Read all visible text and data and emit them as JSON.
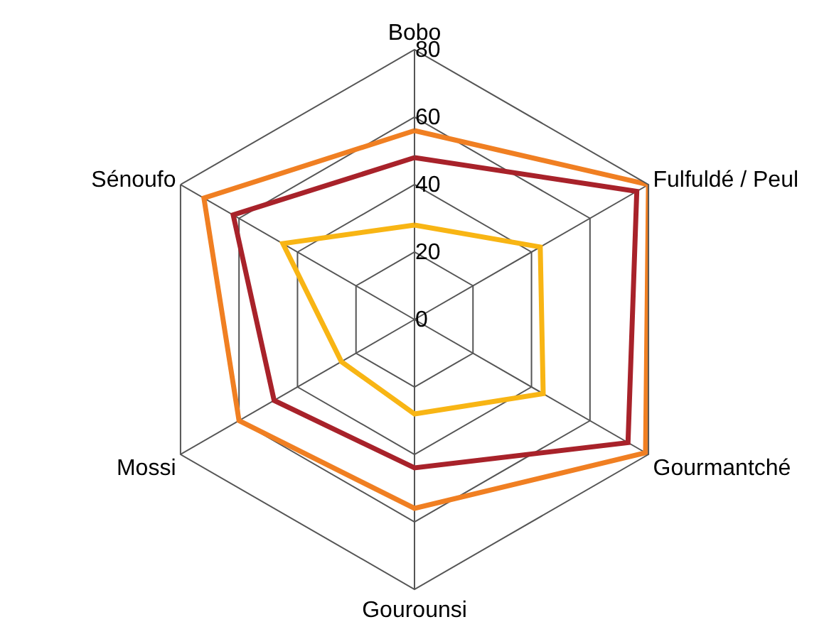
{
  "chart_data": {
    "type": "radar",
    "categories": [
      "Bobo",
      "Fulfuldé / Peul",
      "Gourmantché",
      "Gourounsi",
      "Mossi",
      "Sénoufo"
    ],
    "series": [
      {
        "color": "#f07f22",
        "values": [
          56,
          80,
          79,
          56,
          60,
          72
        ]
      },
      {
        "color": "#a8222a",
        "values": [
          48,
          76,
          73,
          44,
          48,
          62
        ]
      },
      {
        "color": "#f8b514",
        "values": [
          28,
          43,
          44,
          28,
          25,
          45
        ]
      }
    ],
    "ylim": [
      0,
      80
    ],
    "yticks": [
      0,
      20,
      40,
      60,
      80
    ],
    "grid": true,
    "marker": "none",
    "line_style": "solid"
  }
}
